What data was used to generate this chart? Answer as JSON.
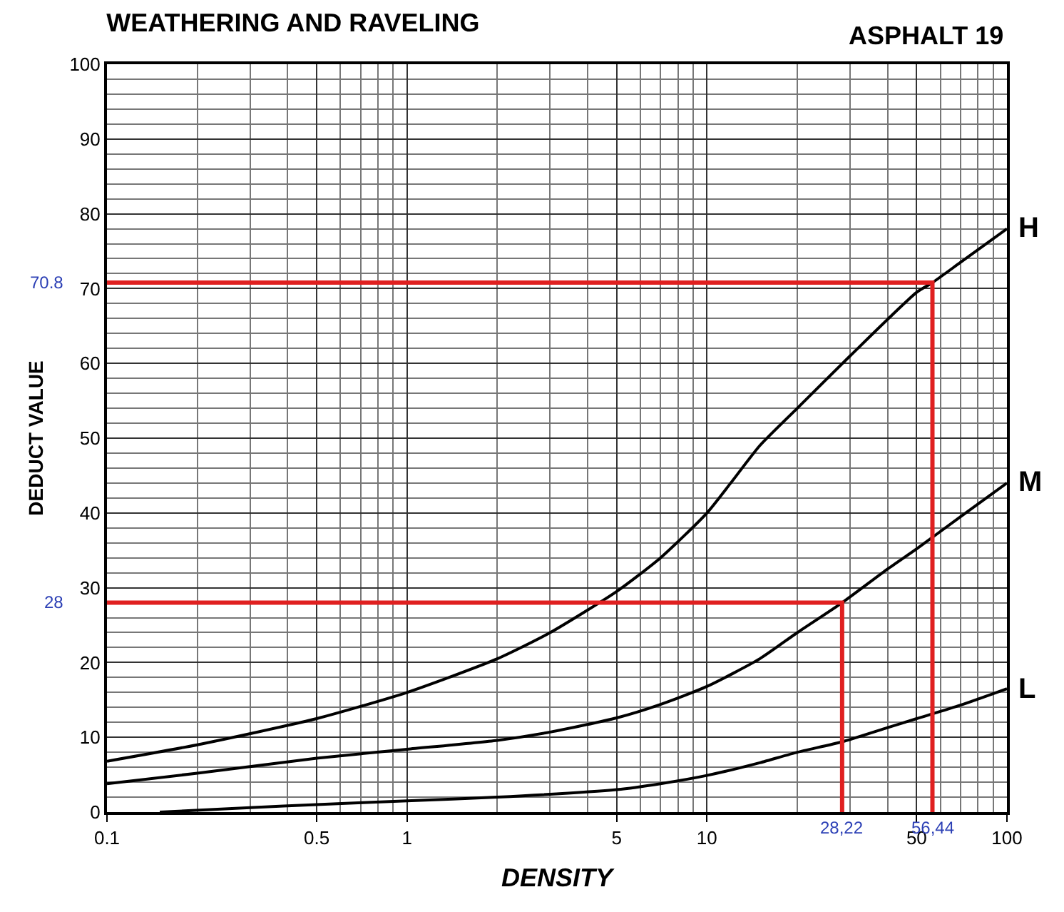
{
  "chart_data": {
    "type": "line",
    "title": "WEATHERING AND RAVELING",
    "subtitle": "ASPHALT 19",
    "xlabel": "DENSITY",
    "ylabel": "DEDUCT VALUE",
    "log": "x",
    "grid": true,
    "legend": false,
    "line_style": "solid",
    "marker": "none",
    "xlim": [
      0.1,
      100
    ],
    "xticks": [
      0.1,
      0.5,
      1,
      5,
      10,
      50,
      100
    ],
    "ylim": [
      0,
      100
    ],
    "yticks": [
      0,
      10,
      20,
      30,
      40,
      50,
      60,
      70,
      80,
      90,
      100
    ],
    "series": [
      {
        "name": "H",
        "color": "#000000",
        "x": [
          0.1,
          0.2,
          0.5,
          1,
          2,
          3,
          5,
          7,
          10,
          12,
          15,
          20,
          30,
          50,
          56.44,
          70,
          100
        ],
        "values": [
          6.8,
          9,
          12.5,
          16,
          20.5,
          24,
          29.5,
          34,
          40,
          44,
          49,
          54,
          61,
          69.5,
          70.8,
          73.5,
          78
        ]
      },
      {
        "name": "M",
        "color": "#000000",
        "x": [
          0.1,
          0.2,
          0.5,
          1,
          2,
          3,
          5,
          7,
          10,
          15,
          20,
          28.22,
          40,
          50,
          70,
          100
        ],
        "values": [
          3.8,
          5.2,
          7.2,
          8.4,
          9.6,
          10.7,
          12.6,
          14.4,
          16.8,
          20.5,
          24,
          28,
          32.5,
          35.2,
          39.5,
          44
        ]
      },
      {
        "name": "L",
        "color": "#000000",
        "x": [
          0.15,
          0.3,
          0.5,
          1,
          2,
          5,
          7,
          10,
          15,
          20,
          28.22,
          40,
          50,
          70,
          100
        ],
        "values": [
          0,
          0.6,
          1,
          1.5,
          2,
          3,
          3.8,
          4.9,
          6.6,
          8,
          9.4,
          11.3,
          12.5,
          14.3,
          16.5
        ]
      },
      {
        "type": "line",
        "color": "#e02020",
        "x": [
          28.22,
          28.22,
          0.1
        ],
        "values": [
          0,
          28,
          28
        ]
      },
      {
        "type": "line",
        "color": "#e02020",
        "x": [
          56.44,
          56.44,
          0.1
        ],
        "values": [
          0,
          70.8,
          70.8
        ]
      }
    ],
    "annotations": [
      {
        "text": "70.8",
        "x": 0.1,
        "y": 70.8
      },
      {
        "text": "28",
        "x": 0.1,
        "y": 28
      },
      {
        "text": "28,22",
        "x": 28.22,
        "y": 0
      },
      {
        "text": "56,44",
        "x": 56.44,
        "y": 0
      }
    ]
  }
}
